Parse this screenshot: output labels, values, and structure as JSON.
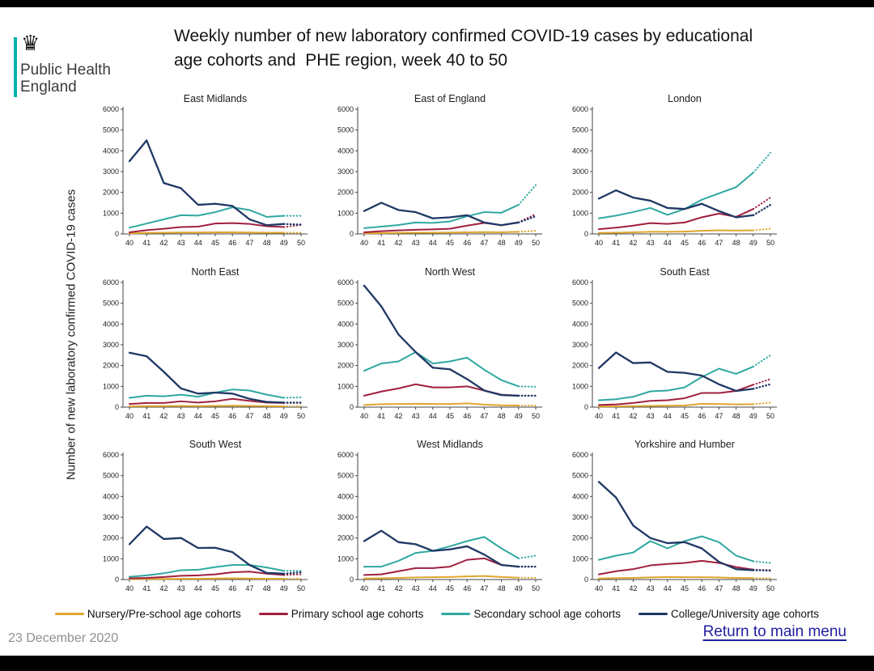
{
  "header": {
    "title": "Weekly number of new laboratory confirmed COVID-19 cases by educational\nage cohorts and  PHE region, week 40 to 50",
    "logo": {
      "name": "Public Health\nEngland",
      "crest_icon": "phe-royal-crest",
      "teal_color": "#00B2A9"
    }
  },
  "y_axis_label": "Number  of  new  laboratory  confirmed  COVID-19 cases",
  "chart_data": {
    "type": "line",
    "x": [
      40,
      41,
      42,
      43,
      44,
      45,
      46,
      47,
      48,
      49,
      50
    ],
    "xlabel": "",
    "ylabel": "Number of new laboratory confirmed COVID-19 cases",
    "ylim": [
      0,
      6000
    ],
    "yticks": [
      0,
      1000,
      2000,
      3000,
      4000,
      5000,
      6000
    ],
    "grid": false,
    "note": "final segment (week 49 to 50) drawn dotted as provisional data",
    "series_order": [
      "nursery",
      "primary",
      "secondary",
      "college"
    ],
    "colors": {
      "nursery": "#DFA62E",
      "primary": "#A01F3F",
      "secondary": "#2FA8A0",
      "college": "#1F3864"
    },
    "regions": [
      {
        "name": "East Midlands",
        "series": {
          "nursery": [
            30,
            50,
            60,
            70,
            70,
            80,
            80,
            70,
            60,
            60,
            60
          ],
          "primary": [
            80,
            180,
            250,
            330,
            350,
            500,
            520,
            480,
            370,
            330,
            430
          ],
          "secondary": [
            300,
            500,
            700,
            900,
            880,
            1050,
            1280,
            1150,
            820,
            870,
            870
          ],
          "college": [
            3500,
            4500,
            2450,
            2200,
            1400,
            1450,
            1350,
            700,
            420,
            480,
            450
          ]
        }
      },
      {
        "name": "East of England",
        "series": {
          "nursery": [
            30,
            40,
            50,
            60,
            60,
            70,
            80,
            90,
            80,
            100,
            150
          ],
          "primary": [
            80,
            130,
            170,
            200,
            220,
            250,
            400,
            530,
            420,
            560,
            950
          ],
          "secondary": [
            280,
            350,
            430,
            550,
            530,
            600,
            850,
            1050,
            1020,
            1400,
            2350
          ],
          "college": [
            1100,
            1500,
            1150,
            1050,
            750,
            800,
            900,
            550,
            420,
            550,
            850
          ]
        }
      },
      {
        "name": "London",
        "series": {
          "nursery": [
            50,
            60,
            80,
            100,
            100,
            110,
            150,
            170,
            160,
            170,
            250
          ],
          "primary": [
            230,
            300,
            400,
            520,
            480,
            550,
            800,
            980,
            820,
            1200,
            1750
          ],
          "secondary": [
            750,
            880,
            1050,
            1250,
            920,
            1200,
            1650,
            1950,
            2250,
            2950,
            3900
          ],
          "college": [
            1700,
            2100,
            1750,
            1600,
            1250,
            1200,
            1450,
            1100,
            800,
            900,
            1400
          ]
        }
      },
      {
        "name": "North East",
        "series": {
          "nursery": [
            40,
            50,
            50,
            60,
            50,
            60,
            70,
            60,
            50,
            40,
            40
          ],
          "primary": [
            150,
            200,
            200,
            280,
            220,
            280,
            400,
            300,
            220,
            200,
            200
          ],
          "secondary": [
            450,
            550,
            520,
            600,
            500,
            700,
            850,
            800,
            600,
            450,
            470
          ],
          "college": [
            2620,
            2450,
            1700,
            900,
            650,
            700,
            650,
            400,
            250,
            220,
            220
          ]
        }
      },
      {
        "name": "North West",
        "series": {
          "nursery": [
            100,
            140,
            150,
            160,
            150,
            150,
            180,
            120,
            90,
            80,
            80
          ],
          "primary": [
            550,
            750,
            900,
            1100,
            950,
            950,
            1000,
            800,
            600,
            550,
            550
          ],
          "secondary": [
            1750,
            2100,
            2200,
            2650,
            2100,
            2200,
            2380,
            1800,
            1300,
            1000,
            980
          ],
          "college": [
            5850,
            4850,
            3500,
            2650,
            1900,
            1820,
            1350,
            800,
            580,
            550,
            550
          ]
        }
      },
      {
        "name": "South East",
        "series": {
          "nursery": [
            30,
            40,
            50,
            60,
            70,
            80,
            160,
            150,
            130,
            140,
            220
          ],
          "primary": [
            100,
            130,
            200,
            300,
            330,
            430,
            680,
            680,
            780,
            1080,
            1350
          ],
          "secondary": [
            330,
            380,
            500,
            760,
            800,
            950,
            1450,
            1850,
            1600,
            1950,
            2500
          ],
          "college": [
            1880,
            2630,
            2120,
            2150,
            1700,
            1650,
            1520,
            1100,
            780,
            880,
            1100
          ]
        }
      },
      {
        "name": "South West",
        "series": {
          "nursery": [
            20,
            30,
            30,
            40,
            40,
            50,
            60,
            50,
            40,
            40,
            40
          ],
          "primary": [
            60,
            80,
            120,
            180,
            200,
            250,
            350,
            380,
            280,
            220,
            250
          ],
          "secondary": [
            130,
            200,
            300,
            450,
            470,
            600,
            700,
            700,
            580,
            420,
            420
          ],
          "college": [
            1700,
            2550,
            1950,
            2000,
            1520,
            1530,
            1320,
            700,
            320,
            280,
            350
          ]
        }
      },
      {
        "name": "West Midlands",
        "series": {
          "nursery": [
            50,
            60,
            80,
            100,
            110,
            120,
            150,
            170,
            120,
            90,
            80
          ],
          "primary": [
            220,
            250,
            400,
            550,
            550,
            620,
            950,
            1020,
            700,
            620,
            620
          ],
          "secondary": [
            620,
            620,
            900,
            1280,
            1380,
            1600,
            1850,
            2050,
            1500,
            1020,
            1150
          ],
          "college": [
            1850,
            2350,
            1800,
            1700,
            1380,
            1450,
            1600,
            1200,
            700,
            620,
            620
          ]
        }
      },
      {
        "name": "Yorkshire and Humber",
        "series": {
          "nursery": [
            50,
            70,
            80,
            100,
            120,
            110,
            110,
            100,
            80,
            70,
            60
          ],
          "primary": [
            250,
            400,
            500,
            680,
            750,
            800,
            900,
            800,
            600,
            480,
            450
          ],
          "secondary": [
            950,
            1150,
            1300,
            1850,
            1500,
            1850,
            2080,
            1800,
            1150,
            880,
            800
          ],
          "college": [
            4700,
            3950,
            2600,
            2000,
            1750,
            1800,
            1500,
            850,
            500,
            450,
            430
          ]
        }
      }
    ]
  },
  "legend": [
    {
      "key": "nursery",
      "label": "Nursery/Pre-school age cohorts",
      "color": "#DFA62E"
    },
    {
      "key": "primary",
      "label": "Primary school age cohorts",
      "color": "#A01F3F"
    },
    {
      "key": "secondary",
      "label": "Secondary school age cohorts",
      "color": "#2FA8A0"
    },
    {
      "key": "college",
      "label": "College/University age cohorts",
      "color": "#1F3864"
    }
  ],
  "footer": {
    "date": "23 December 2020",
    "link_label": "Return to main menu"
  }
}
